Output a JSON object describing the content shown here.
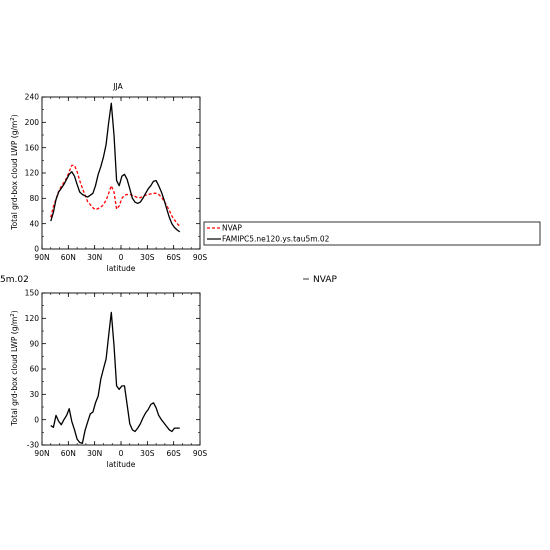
{
  "chart_data": [
    {
      "type": "line",
      "title": "JJA",
      "xlabel": "latitude",
      "ylabel": "Total grd-box cloud LWP (g/m",
      "ylabel_sup": "2",
      "ylabel_end": ")",
      "xlim": [
        90,
        -90
      ],
      "ylim": [
        0,
        240
      ],
      "xticks": [
        90,
        60,
        30,
        0,
        -30,
        -60,
        -90
      ],
      "xtick_labels": [
        "90N",
        "60N",
        "30N",
        "0",
        "30S",
        "60S",
        "90S"
      ],
      "yticks": [
        0,
        40,
        80,
        120,
        160,
        200,
        240
      ],
      "ytick_labels": [
        "0",
        "40",
        "80",
        "120",
        "160",
        "200",
        "240"
      ],
      "legend": "right, outside plot",
      "series": [
        {
          "name": "NVAP",
          "color": "#ff0000",
          "dash": true,
          "x": [
            80,
            77,
            74,
            71,
            68,
            65,
            62,
            59,
            56,
            53,
            50,
            47,
            44,
            41,
            38,
            35,
            32,
            29,
            26,
            23,
            20,
            17,
            14,
            11,
            8,
            5,
            2,
            -1,
            -4,
            -7,
            -10,
            -13,
            -16,
            -19,
            -22,
            -25,
            -28,
            -31,
            -34,
            -37,
            -40,
            -43,
            -46,
            -49,
            -52,
            -55,
            -58,
            -61,
            -64,
            -67
          ],
          "y": [
            50,
            67,
            79,
            91,
            99,
            105,
            112,
            122,
            132,
            132,
            122,
            108,
            96,
            85,
            75,
            70,
            65,
            62,
            64,
            66,
            70,
            77,
            88,
            100,
            90,
            63,
            68,
            80,
            85,
            86,
            86,
            85,
            83,
            81,
            81,
            83,
            85,
            86,
            87,
            88,
            88,
            86,
            82,
            76,
            69,
            61,
            52,
            46,
            40,
            36
          ]
        },
        {
          "name": "FAMIPC5.ne120.ys.tau5m.02",
          "color": "#000000",
          "dash": false,
          "x": [
            80,
            77,
            74,
            71,
            68,
            65,
            62,
            59,
            56,
            53,
            50,
            47,
            44,
            41,
            38,
            35,
            32,
            29,
            26,
            23,
            20,
            17,
            14,
            11,
            8,
            5,
            2,
            -1,
            -4,
            -7,
            -10,
            -13,
            -16,
            -19,
            -22,
            -25,
            -28,
            -31,
            -34,
            -37,
            -40,
            -43,
            -46,
            -49,
            -52,
            -55,
            -58,
            -61,
            -64,
            -67
          ],
          "y": [
            44,
            58,
            78,
            90,
            96,
            102,
            110,
            118,
            122,
            115,
            102,
            90,
            86,
            84,
            82,
            85,
            88,
            100,
            118,
            130,
            145,
            165,
            200,
            230,
            180,
            108,
            100,
            115,
            118,
            110,
            95,
            80,
            74,
            72,
            74,
            80,
            88,
            95,
            100,
            107,
            108,
            100,
            90,
            78,
            64,
            50,
            40,
            34,
            30,
            27
          ]
        }
      ]
    },
    {
      "type": "line",
      "title": "",
      "xlabel": "latitude",
      "ylabel": "Total grd-box cloud LWP (g/m",
      "ylabel_sup": "2",
      "ylabel_end": ")",
      "xlim": [
        90,
        -90
      ],
      "ylim": [
        -30,
        150
      ],
      "xticks": [
        90,
        60,
        30,
        0,
        -30,
        -60,
        -90
      ],
      "xtick_labels": [
        "90N",
        "60N",
        "30N",
        "0",
        "30S",
        "60S",
        "90S"
      ],
      "yticks": [
        -30,
        0,
        30,
        60,
        90,
        120,
        150
      ],
      "ytick_labels": [
        "-30",
        "0",
        "30",
        "60",
        "90",
        "120",
        "150"
      ],
      "series": [
        {
          "name": "",
          "color": "#000000",
          "dash": false,
          "x": [
            80,
            77,
            74,
            71,
            68,
            65,
            62,
            59,
            56,
            53,
            50,
            47,
            44,
            41,
            38,
            35,
            32,
            29,
            26,
            23,
            20,
            17,
            14,
            11,
            8,
            5,
            2,
            -1,
            -4,
            -7,
            -10,
            -13,
            -16,
            -19,
            -22,
            -25,
            -28,
            -31,
            -34,
            -37,
            -40,
            -43,
            -46,
            -49,
            -52,
            -55,
            -58,
            -61,
            -64,
            -67
          ],
          "y": [
            -7,
            -9,
            5,
            -2,
            -6,
            0,
            5,
            13,
            -2,
            -12,
            -23,
            -27,
            -28,
            -13,
            -3,
            7,
            9,
            20,
            28,
            48,
            60,
            72,
            100,
            127,
            88,
            40,
            36,
            40,
            40,
            18,
            -5,
            -12,
            -14,
            -10,
            -5,
            2,
            8,
            12,
            18,
            20,
            14,
            5,
            0,
            -4,
            -8,
            -12,
            -14,
            -10,
            -10,
            -10
          ]
        }
      ]
    }
  ],
  "legend": {
    "entries": [
      "NVAP",
      "FAMIPC5.ne120.ys.tau5m.02"
    ]
  },
  "fragments": {
    "left_clip": "5m.02",
    "right_item": "NVAP"
  }
}
